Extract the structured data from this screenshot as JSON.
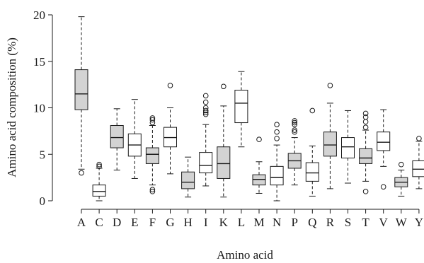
{
  "chart_data": {
    "type": "boxplot",
    "xlabel": "Amino acid",
    "ylabel": "Amino acid composition (%)",
    "ylim": [
      0,
      20
    ],
    "yticks": [
      0,
      5,
      10,
      15,
      20
    ],
    "grid": false,
    "colors": {
      "gray_fill": "#d3d3d3",
      "white_fill": "#ffffff",
      "stroke": "#1a1a1a"
    },
    "categories": [
      "A",
      "C",
      "D",
      "E",
      "F",
      "G",
      "H",
      "I",
      "K",
      "L",
      "M",
      "N",
      "P",
      "Q",
      "R",
      "S",
      "T",
      "V",
      "W",
      "Y"
    ],
    "boxes": [
      {
        "label": "A",
        "fill": "gray",
        "whisker_low": 3.4,
        "q1": 9.8,
        "median": 11.5,
        "q3": 14.1,
        "whisker_high": 19.8,
        "outliers": [
          3.0
        ]
      },
      {
        "label": "C",
        "fill": "white",
        "whisker_low": 0.0,
        "q1": 0.5,
        "median": 1.0,
        "q3": 1.7,
        "whisker_high": 3.5,
        "outliers": [
          3.7,
          3.9
        ]
      },
      {
        "label": "D",
        "fill": "gray",
        "whisker_low": 3.3,
        "q1": 5.7,
        "median": 6.8,
        "q3": 8.1,
        "whisker_high": 9.9,
        "outliers": []
      },
      {
        "label": "E",
        "fill": "white",
        "whisker_low": 2.4,
        "q1": 4.8,
        "median": 6.0,
        "q3": 7.2,
        "whisker_high": 10.9,
        "outliers": []
      },
      {
        "label": "F",
        "fill": "gray",
        "whisker_low": 1.7,
        "q1": 4.0,
        "median": 5.0,
        "q3": 5.7,
        "whisker_high": 8.1,
        "outliers": [
          1.0,
          1.2,
          8.4,
          8.7,
          8.9
        ]
      },
      {
        "label": "G",
        "fill": "white",
        "whisker_low": 2.9,
        "q1": 5.8,
        "median": 6.8,
        "q3": 7.9,
        "whisker_high": 10.0,
        "outliers": [
          12.4
        ]
      },
      {
        "label": "H",
        "fill": "gray",
        "whisker_low": 0.4,
        "q1": 1.3,
        "median": 2.0,
        "q3": 3.1,
        "whisker_high": 4.7,
        "outliers": []
      },
      {
        "label": "I",
        "fill": "white",
        "whisker_low": 1.6,
        "q1": 3.0,
        "median": 3.8,
        "q3": 5.2,
        "whisker_high": 8.2,
        "outliers": [
          9.3,
          9.5,
          9.7,
          10.0,
          10.6,
          11.3
        ]
      },
      {
        "label": "K",
        "fill": "gray",
        "whisker_low": 0.4,
        "q1": 2.4,
        "median": 4.0,
        "q3": 5.8,
        "whisker_high": 10.2,
        "outliers": [
          12.3
        ]
      },
      {
        "label": "L",
        "fill": "white",
        "whisker_low": 5.8,
        "q1": 8.4,
        "median": 10.5,
        "q3": 11.9,
        "whisker_high": 13.9,
        "outliers": []
      },
      {
        "label": "M",
        "fill": "gray",
        "whisker_low": 0.8,
        "q1": 1.7,
        "median": 2.3,
        "q3": 2.8,
        "whisker_high": 4.2,
        "outliers": [
          6.6
        ]
      },
      {
        "label": "N",
        "fill": "white",
        "whisker_low": 0.0,
        "q1": 1.7,
        "median": 2.5,
        "q3": 3.7,
        "whisker_high": 6.0,
        "outliers": [
          6.7,
          7.4,
          8.2
        ]
      },
      {
        "label": "P",
        "fill": "gray",
        "whisker_low": 1.7,
        "q1": 3.5,
        "median": 4.3,
        "q3": 5.1,
        "whisker_high": 6.8,
        "outliers": [
          7.4,
          7.6,
          8.2,
          8.4,
          8.6
        ]
      },
      {
        "label": "Q",
        "fill": "white",
        "whisker_low": 0.5,
        "q1": 2.1,
        "median": 3.0,
        "q3": 4.1,
        "whisker_high": 5.9,
        "outliers": [
          9.7
        ]
      },
      {
        "label": "R",
        "fill": "gray",
        "whisker_low": 1.3,
        "q1": 4.8,
        "median": 6.0,
        "q3": 7.4,
        "whisker_high": 10.5,
        "outliers": [
          12.4
        ]
      },
      {
        "label": "S",
        "fill": "white",
        "whisker_low": 1.9,
        "q1": 4.6,
        "median": 5.8,
        "q3": 6.8,
        "whisker_high": 9.7,
        "outliers": []
      },
      {
        "label": "T",
        "fill": "gray",
        "whisker_low": 2.1,
        "q1": 4.0,
        "median": 4.6,
        "q3": 5.6,
        "whisker_high": 7.6,
        "outliers": [
          1.0,
          7.9,
          8.5,
          9.0,
          9.4
        ]
      },
      {
        "label": "V",
        "fill": "white",
        "whisker_low": 3.7,
        "q1": 5.4,
        "median": 6.3,
        "q3": 7.4,
        "whisker_high": 9.8,
        "outliers": [
          1.5
        ]
      },
      {
        "label": "W",
        "fill": "gray",
        "whisker_low": 0.5,
        "q1": 1.5,
        "median": 2.0,
        "q3": 2.5,
        "whisker_high": 3.3,
        "outliers": [
          3.9
        ]
      },
      {
        "label": "Y",
        "fill": "white",
        "whisker_low": 1.3,
        "q1": 2.6,
        "median": 3.4,
        "q3": 4.3,
        "whisker_high": 6.4,
        "outliers": [
          6.7
        ]
      }
    ]
  }
}
